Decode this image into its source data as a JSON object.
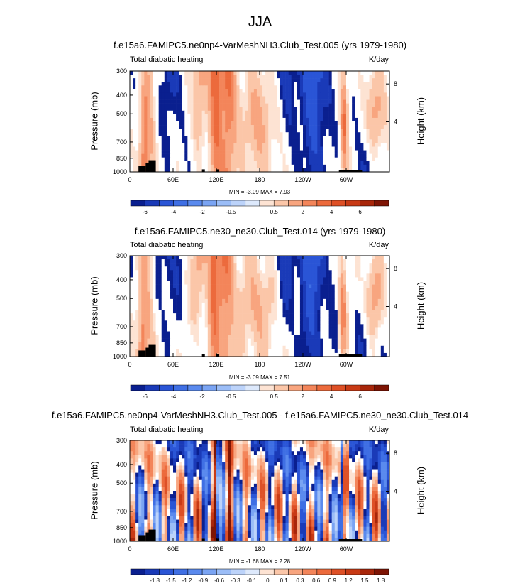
{
  "page_title": "JJA",
  "colors": {
    "blues": [
      "#0a1f8f",
      "#1a3ab8",
      "#2a55d6",
      "#3f6fe4",
      "#5a8aee",
      "#7aa4f3",
      "#9bbdf7",
      "#bcd3fa",
      "#dde9fc"
    ],
    "neutral": "#ffffff",
    "reds": [
      "#fde3d3",
      "#fbc6a8",
      "#f8a57f",
      "#f3855a",
      "#ec6a3c",
      "#de5026",
      "#c83a15",
      "#a8260a",
      "#7e1404"
    ],
    "topo": "#000000"
  },
  "panels": [
    {
      "title": "f.e15a6.FAMIPC5.ne0np4-VarMeshNH3.Club_Test.005 (yrs 1979-1980)",
      "left_label": "Total diabatic heating",
      "right_label": "K/day",
      "stats_text": "MIN =  -3.09  MAX =  7.93",
      "colorbar_labels": [
        "-6",
        "-4",
        "-2",
        "-0.5",
        "0.5",
        "2",
        "4",
        "6"
      ]
    },
    {
      "title": "f.e15a6.FAMIPC5.ne30_ne30.Club_Test.014 (yrs 1979-1980)",
      "left_label": "Total diabatic heating",
      "right_label": "K/day",
      "stats_text": "MIN =  -3.09  MAX =  7.51",
      "colorbar_labels": [
        "-6",
        "-4",
        "-2",
        "-0.5",
        "0.5",
        "2",
        "4",
        "6"
      ]
    },
    {
      "title": "f.e15a6.FAMIPC5.ne0np4-VarMeshNH3.Club_Test.005 - f.e15a6.FAMIPC5.ne30_ne30.Club_Test.014",
      "left_label": "Total diabatic heating",
      "right_label": "K/day",
      "stats_text": "MIN =  -1.68  MAX =  2.28",
      "colorbar_labels": [
        "-1.8",
        "-1.5",
        "-1.2",
        "-0.9",
        "-0.6",
        "-0.3",
        "-0.1",
        "0",
        "0.1",
        "0.3",
        "0.6",
        "0.9",
        "1.2",
        "1.5",
        "1.8"
      ]
    }
  ],
  "axes": {
    "ylabel": "Pressure (mb)",
    "ylabel_right": "Height (km)"
  },
  "chart_data": [
    {
      "type": "heatmap",
      "title": "f.e15a6.FAMIPC5.ne0np4-VarMeshNH3.Club_Test.005 (yrs 1979-1980)",
      "variable": "Total diabatic heating",
      "units": "K/day",
      "xlabel": "",
      "ylabel": "Pressure (mb)",
      "ylabel_right": "Height (km)",
      "x_ticks": [
        "0",
        "60E",
        "120E",
        "180",
        "120W",
        "60W"
      ],
      "y_ticks": [
        "300",
        "400",
        "500",
        "700",
        "850",
        "1000"
      ],
      "y_right_ticks": [
        "8",
        "4"
      ],
      "xlim": [
        0,
        360
      ],
      "ylim": [
        1000,
        300
      ],
      "min": -3.09,
      "max": 7.93,
      "levels": [
        -6,
        -5,
        -4,
        -3,
        -2,
        -1,
        -0.5,
        -0.1,
        0.1,
        0.5,
        1,
        2,
        3,
        4,
        5,
        6
      ]
    },
    {
      "type": "heatmap",
      "title": "f.e15a6.FAMIPC5.ne30_ne30.Club_Test.014 (yrs 1979-1980)",
      "variable": "Total diabatic heating",
      "units": "K/day",
      "xlabel": "",
      "ylabel": "Pressure (mb)",
      "ylabel_right": "Height (km)",
      "x_ticks": [
        "0",
        "60E",
        "120E",
        "180",
        "120W",
        "60W"
      ],
      "y_ticks": [
        "300",
        "400",
        "500",
        "700",
        "850",
        "1000"
      ],
      "y_right_ticks": [
        "8",
        "4"
      ],
      "xlim": [
        0,
        360
      ],
      "ylim": [
        1000,
        300
      ],
      "min": -3.09,
      "max": 7.51,
      "levels": [
        -6,
        -5,
        -4,
        -3,
        -2,
        -1,
        -0.5,
        -0.1,
        0.1,
        0.5,
        1,
        2,
        3,
        4,
        5,
        6
      ]
    },
    {
      "type": "heatmap",
      "title": "f.e15a6.FAMIPC5.ne0np4-VarMeshNH3.Club_Test.005 - f.e15a6.FAMIPC5.ne30_ne30.Club_Test.014",
      "variable": "Total diabatic heating",
      "units": "K/day",
      "xlabel": "",
      "ylabel": "Pressure (mb)",
      "ylabel_right": "Height (km)",
      "x_ticks": [
        "0",
        "60E",
        "120E",
        "180",
        "120W",
        "60W"
      ],
      "y_ticks": [
        "300",
        "400",
        "500",
        "700",
        "850",
        "1000"
      ],
      "y_right_ticks": [
        "8",
        "4"
      ],
      "xlim": [
        0,
        360
      ],
      "ylim": [
        1000,
        300
      ],
      "min": -1.68,
      "max": 2.28,
      "levels": [
        -1.8,
        -1.5,
        -1.2,
        -0.9,
        -0.6,
        -0.3,
        -0.1,
        0,
        0.1,
        0.3,
        0.6,
        0.9,
        1.2,
        1.5,
        1.8
      ]
    }
  ]
}
